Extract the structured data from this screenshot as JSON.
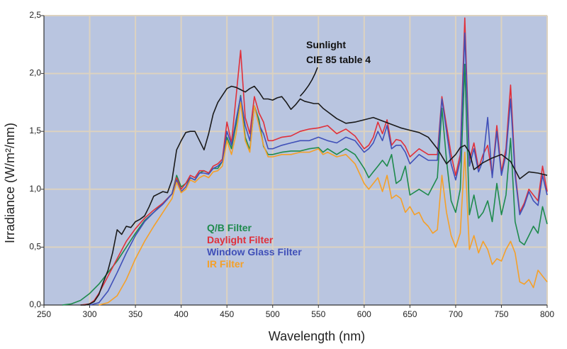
{
  "chart_data": {
    "type": "line",
    "title": "",
    "xlabel": "Wavelength (nm)",
    "ylabel": "Irradiance (W/m²/nm)",
    "xlim": [
      250,
      800
    ],
    "ylim": [
      0,
      2.5
    ],
    "x_ticks": [
      250,
      300,
      350,
      400,
      450,
      500,
      550,
      600,
      650,
      700,
      750,
      800
    ],
    "x_tick_labels": [
      "250",
      "300",
      "350",
      "400",
      "450",
      "500",
      "550",
      "600",
      "650",
      "700",
      "750",
      "800"
    ],
    "y_ticks": [
      0,
      0.5,
      1.0,
      1.5,
      2.0,
      2.5
    ],
    "y_tick_labels": [
      "0,0",
      "0,5",
      "1,0",
      "1,5",
      "2,0",
      "2,5"
    ],
    "grid": true,
    "plot_background": "#b9c5e0",
    "grid_color": "#dcd2c0",
    "legend_position": "lower-left, inside plot",
    "annotation": {
      "text_line1": "Sunlight",
      "text_line2": "CIE 85 table 4",
      "points_to": {
        "x": 530,
        "y": 1.78
      }
    },
    "series": [
      {
        "name": "Sunlight",
        "color": "#1a1a1a",
        "in_legend": false,
        "x": [
          290,
          295,
          300,
          305,
          310,
          315,
          320,
          325,
          330,
          335,
          340,
          345,
          350,
          355,
          360,
          365,
          370,
          375,
          380,
          385,
          390,
          395,
          400,
          405,
          410,
          415,
          420,
          425,
          430,
          435,
          440,
          445,
          450,
          455,
          460,
          465,
          470,
          475,
          480,
          485,
          490,
          495,
          500,
          505,
          510,
          515,
          520,
          525,
          530,
          535,
          540,
          545,
          550,
          555,
          560,
          570,
          580,
          590,
          600,
          610,
          620,
          630,
          640,
          650,
          660,
          670,
          680,
          690,
          700,
          705,
          710,
          715,
          720,
          730,
          740,
          750,
          760,
          770,
          780,
          790,
          800
        ],
        "values": [
          0.0,
          0.0,
          0.01,
          0.03,
          0.09,
          0.2,
          0.3,
          0.45,
          0.65,
          0.61,
          0.68,
          0.67,
          0.72,
          0.74,
          0.77,
          0.85,
          0.94,
          0.96,
          0.98,
          0.97,
          1.08,
          1.34,
          1.42,
          1.49,
          1.5,
          1.5,
          1.42,
          1.34,
          1.48,
          1.65,
          1.75,
          1.81,
          1.87,
          1.89,
          1.88,
          1.86,
          1.84,
          1.87,
          1.89,
          1.84,
          1.78,
          1.78,
          1.77,
          1.79,
          1.8,
          1.75,
          1.69,
          1.73,
          1.78,
          1.76,
          1.75,
          1.74,
          1.74,
          1.7,
          1.67,
          1.61,
          1.57,
          1.58,
          1.6,
          1.62,
          1.59,
          1.56,
          1.53,
          1.51,
          1.49,
          1.45,
          1.35,
          1.22,
          1.3,
          1.36,
          1.38,
          1.32,
          1.17,
          1.23,
          1.27,
          1.3,
          1.24,
          1.09,
          1.15,
          1.14,
          1.12
        ]
      },
      {
        "name": "Q/B Filter",
        "color": "#1e8a4c",
        "in_legend": true,
        "x": [
          270,
          280,
          290,
          300,
          310,
          320,
          330,
          340,
          350,
          360,
          370,
          380,
          390,
          395,
          400,
          405,
          410,
          415,
          420,
          425,
          430,
          435,
          440,
          445,
          450,
          455,
          460,
          465,
          470,
          475,
          480,
          485,
          490,
          495,
          500,
          510,
          520,
          530,
          540,
          550,
          555,
          560,
          570,
          580,
          590,
          600,
          605,
          610,
          615,
          620,
          625,
          630,
          635,
          640,
          645,
          650,
          660,
          670,
          680,
          685,
          690,
          695,
          700,
          705,
          710,
          715,
          720,
          725,
          730,
          735,
          740,
          745,
          750,
          755,
          760,
          765,
          770,
          775,
          780,
          785,
          790,
          795,
          800
        ],
        "values": [
          0.0,
          0.01,
          0.04,
          0.1,
          0.18,
          0.28,
          0.38,
          0.5,
          0.62,
          0.73,
          0.8,
          0.88,
          0.96,
          1.12,
          1.02,
          1.05,
          1.1,
          1.08,
          1.14,
          1.16,
          1.14,
          1.18,
          1.18,
          1.24,
          1.45,
          1.35,
          1.56,
          1.81,
          1.45,
          1.34,
          1.72,
          1.6,
          1.37,
          1.3,
          1.3,
          1.32,
          1.33,
          1.33,
          1.35,
          1.36,
          1.32,
          1.35,
          1.3,
          1.35,
          1.3,
          1.18,
          1.1,
          1.15,
          1.2,
          1.25,
          1.2,
          1.3,
          1.05,
          1.08,
          1.2,
          0.95,
          1.0,
          0.95,
          1.1,
          1.7,
          1.25,
          0.9,
          0.8,
          1.0,
          2.08,
          0.78,
          0.95,
          0.75,
          0.8,
          0.9,
          0.72,
          1.05,
          0.78,
          0.95,
          1.44,
          0.72,
          0.55,
          0.52,
          0.6,
          0.68,
          0.62,
          0.85,
          0.7
        ]
      },
      {
        "name": "Daylight Filter",
        "color": "#e0303a",
        "in_legend": true,
        "x": [
          290,
          300,
          305,
          310,
          320,
          330,
          340,
          350,
          360,
          370,
          380,
          390,
          395,
          400,
          405,
          410,
          415,
          420,
          425,
          430,
          435,
          440,
          445,
          450,
          455,
          460,
          465,
          470,
          475,
          480,
          485,
          490,
          495,
          500,
          510,
          520,
          530,
          540,
          550,
          560,
          570,
          580,
          590,
          600,
          605,
          610,
          615,
          620,
          625,
          630,
          635,
          640,
          645,
          650,
          660,
          670,
          680,
          685,
          690,
          695,
          700,
          705,
          710,
          715,
          720,
          725,
          730,
          735,
          740,
          745,
          750,
          755,
          760,
          765,
          770,
          775,
          780,
          785,
          790,
          795,
          800
        ],
        "values": [
          0.0,
          0.01,
          0.04,
          0.1,
          0.25,
          0.4,
          0.55,
          0.66,
          0.75,
          0.82,
          0.88,
          0.96,
          1.1,
          1.0,
          1.05,
          1.12,
          1.1,
          1.16,
          1.16,
          1.14,
          1.2,
          1.22,
          1.26,
          1.58,
          1.4,
          1.8,
          2.2,
          1.62,
          1.48,
          1.8,
          1.66,
          1.58,
          1.42,
          1.42,
          1.45,
          1.46,
          1.5,
          1.52,
          1.53,
          1.55,
          1.48,
          1.52,
          1.46,
          1.35,
          1.38,
          1.45,
          1.58,
          1.48,
          1.6,
          1.38,
          1.43,
          1.42,
          1.37,
          1.28,
          1.35,
          1.3,
          1.3,
          1.8,
          1.55,
          1.3,
          1.12,
          1.3,
          2.48,
          1.25,
          1.4,
          1.18,
          1.3,
          1.38,
          1.12,
          1.55,
          1.15,
          1.35,
          1.9,
          1.15,
          0.8,
          0.88,
          1.0,
          0.95,
          0.9,
          1.2,
          0.98
        ]
      },
      {
        "name": "Window Glass Filter",
        "color": "#4050b8",
        "in_legend": true,
        "x": [
          300,
          305,
          310,
          320,
          330,
          340,
          350,
          360,
          370,
          380,
          390,
          395,
          400,
          405,
          410,
          415,
          420,
          425,
          430,
          435,
          440,
          445,
          450,
          455,
          460,
          465,
          470,
          475,
          480,
          485,
          490,
          495,
          500,
          510,
          520,
          530,
          540,
          550,
          560,
          570,
          580,
          590,
          600,
          605,
          610,
          615,
          620,
          625,
          630,
          635,
          640,
          645,
          650,
          660,
          670,
          680,
          685,
          690,
          695,
          700,
          705,
          710,
          715,
          720,
          725,
          730,
          735,
          740,
          745,
          750,
          755,
          760,
          765,
          770,
          775,
          780,
          785,
          790,
          795,
          800
        ],
        "values": [
          0.0,
          0.01,
          0.02,
          0.12,
          0.28,
          0.45,
          0.6,
          0.72,
          0.8,
          0.87,
          0.96,
          1.08,
          0.98,
          1.02,
          1.1,
          1.08,
          1.14,
          1.14,
          1.13,
          1.18,
          1.2,
          1.24,
          1.5,
          1.38,
          1.6,
          1.8,
          1.55,
          1.42,
          1.72,
          1.56,
          1.48,
          1.35,
          1.35,
          1.38,
          1.4,
          1.42,
          1.42,
          1.45,
          1.42,
          1.4,
          1.45,
          1.42,
          1.32,
          1.35,
          1.4,
          1.5,
          1.42,
          1.55,
          1.35,
          1.38,
          1.38,
          1.32,
          1.22,
          1.3,
          1.25,
          1.25,
          1.78,
          1.5,
          1.22,
          1.08,
          1.25,
          2.35,
          1.2,
          1.35,
          1.15,
          1.25,
          1.62,
          1.1,
          1.5,
          1.12,
          1.3,
          1.78,
          1.12,
          0.78,
          0.86,
          0.98,
          0.9,
          0.86,
          1.12,
          0.95
        ]
      },
      {
        "name": "IR Filter",
        "color": "#f5a028",
        "in_legend": true,
        "x": [
          310,
          315,
          320,
          330,
          340,
          350,
          360,
          370,
          380,
          390,
          395,
          400,
          405,
          410,
          415,
          420,
          425,
          430,
          435,
          440,
          445,
          450,
          455,
          460,
          465,
          470,
          475,
          480,
          485,
          490,
          495,
          500,
          510,
          520,
          530,
          540,
          550,
          555,
          560,
          570,
          580,
          590,
          600,
          605,
          610,
          615,
          620,
          625,
          630,
          635,
          640,
          645,
          650,
          655,
          660,
          665,
          670,
          675,
          680,
          685,
          690,
          695,
          700,
          705,
          710,
          715,
          720,
          725,
          730,
          735,
          740,
          745,
          750,
          755,
          760,
          765,
          770,
          775,
          780,
          785,
          790,
          795,
          800
        ],
        "values": [
          0.0,
          0.01,
          0.02,
          0.08,
          0.22,
          0.4,
          0.55,
          0.68,
          0.8,
          0.92,
          1.06,
          0.97,
          1.0,
          1.08,
          1.06,
          1.1,
          1.12,
          1.1,
          1.15,
          1.16,
          1.2,
          1.42,
          1.3,
          1.48,
          1.75,
          1.42,
          1.32,
          1.72,
          1.55,
          1.38,
          1.28,
          1.28,
          1.3,
          1.3,
          1.32,
          1.32,
          1.35,
          1.3,
          1.32,
          1.28,
          1.3,
          1.22,
          1.05,
          1.0,
          1.05,
          1.1,
          0.98,
          1.12,
          0.92,
          0.95,
          0.92,
          0.8,
          0.85,
          0.78,
          0.8,
          0.72,
          0.68,
          0.62,
          0.65,
          1.12,
          0.8,
          0.6,
          0.5,
          0.62,
          1.32,
          0.48,
          0.6,
          0.45,
          0.55,
          0.48,
          0.35,
          0.4,
          0.38,
          0.48,
          0.55,
          0.45,
          0.2,
          0.18,
          0.22,
          0.15,
          0.3,
          0.25,
          0.2
        ]
      }
    ]
  }
}
